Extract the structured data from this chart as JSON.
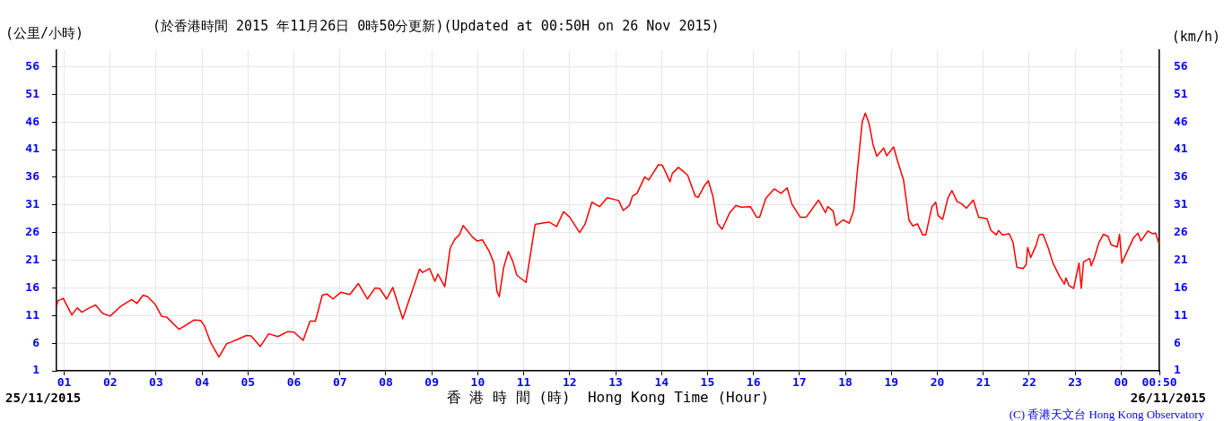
{
  "chart_data": {
    "type": "line",
    "title": "(於香港時間 2015 年11月26日 0時50分更新)(Updated at 00:50H on 26 Nov 2015)",
    "ylabel": "(公里/小時)",
    "y2label": "(km/h)",
    "xlabel": "香 港 時 間 (時)  Hong Kong Time (Hour)",
    "annotations": [
      "25/11/2015",
      "26/11/2015",
      "(C) 香港天文台 Hong Kong Observatory"
    ],
    "x": [
      "2015-11-25T00:50",
      "2015-11-25T00:52",
      "2015-11-25T00:59",
      "2015-11-25T01:01",
      "2015-11-25T01:10",
      "2015-11-25T01:17",
      "2015-11-25T01:23",
      "2015-11-25T01:33",
      "2015-11-25T01:41",
      "2015-11-25T01:50",
      "2015-11-25T02:00",
      "2015-11-25T02:14",
      "2015-11-25T02:28",
      "2015-11-25T02:35",
      "2015-11-25T02:43",
      "2015-11-25T02:49",
      "2015-11-25T02:59",
      "2015-11-25T03:07",
      "2015-11-25T03:14",
      "2015-11-25T03:30",
      "2015-11-25T03:50",
      "2015-11-25T03:58",
      "2015-11-25T04:03",
      "2015-11-25T04:11",
      "2015-11-25T04:22",
      "2015-11-25T04:32",
      "2015-11-25T04:38",
      "2015-11-25T04:48",
      "2015-11-25T04:58",
      "2015-11-25T05:04",
      "2015-11-25T05:16",
      "2015-11-25T05:27",
      "2015-11-25T05:39",
      "2015-11-25T05:52",
      "2015-11-25T06:00",
      "2015-11-25T06:12",
      "2015-11-25T06:21",
      "2015-11-25T06:28",
      "2015-11-25T06:37",
      "2015-11-25T06:43",
      "2015-11-25T06:51",
      "2015-11-25T07:01",
      "2015-11-25T07:13",
      "2015-11-25T07:24",
      "2015-11-25T07:36",
      "2015-11-25T07:46",
      "2015-11-25T07:52",
      "2015-11-25T08:01",
      "2015-11-25T08:09",
      "2015-11-25T08:22",
      "2015-11-25T08:32",
      "2015-11-25T08:44",
      "2015-11-25T08:48",
      "2015-11-25T08:57",
      "2015-11-25T09:04",
      "2015-11-25T09:08",
      "2015-11-25T09:17",
      "2015-11-25T09:24",
      "2015-11-25T09:30",
      "2015-11-25T09:36",
      "2015-11-25T09:41",
      "2015-11-25T09:53",
      "2015-11-25T09:59",
      "2015-11-25T10:06",
      "2015-11-25T10:15",
      "2015-11-25T10:21",
      "2015-11-25T10:25",
      "2015-11-25T10:28",
      "2015-11-25T10:34",
      "2015-11-25T10:40",
      "2015-11-25T10:46",
      "2015-11-25T10:51",
      "2015-11-25T11:03",
      "2015-11-25T11:07",
      "2015-11-25T11:15",
      "2015-11-25T11:23",
      "2015-11-25T11:33",
      "2015-11-25T11:43",
      "2015-11-25T11:52",
      "2015-11-25T12:00",
      "2015-11-25T12:13",
      "2015-11-25T12:20",
      "2015-11-25T12:29",
      "2015-11-25T12:39",
      "2015-11-25T12:49",
      "2015-11-25T13:04",
      "2015-11-25T13:10",
      "2015-11-25T13:18",
      "2015-11-25T13:22",
      "2015-11-25T13:28",
      "2015-11-25T13:38",
      "2015-11-25T13:43",
      "2015-11-25T13:56",
      "2015-11-25T14:01",
      "2015-11-25T14:11",
      "2015-11-25T14:14",
      "2015-11-25T14:22",
      "2015-11-25T14:34",
      "2015-11-25T14:44",
      "2015-11-25T14:48",
      "2015-11-25T14:56",
      "2015-11-25T15:01",
      "2015-11-25T15:07",
      "2015-11-25T15:13",
      "2015-11-25T15:19",
      "2015-11-25T15:29",
      "2015-11-25T15:37",
      "2015-11-25T15:44",
      "2015-11-25T15:56",
      "2015-11-25T16:04",
      "2015-11-25T16:08",
      "2015-11-25T16:16",
      "2015-11-25T16:27",
      "2015-11-25T16:36",
      "2015-11-25T16:44",
      "2015-11-25T16:50",
      "2015-11-25T17:01",
      "2015-11-25T17:09",
      "2015-11-25T17:25",
      "2015-11-25T17:34",
      "2015-11-25T17:37",
      "2015-11-25T17:44",
      "2015-11-25T17:48",
      "2015-11-25T17:57",
      "2015-11-25T18:05",
      "2015-11-25T18:11",
      "2015-11-25T18:16",
      "2015-11-25T18:22",
      "2015-11-25T18:26",
      "2015-11-25T18:31",
      "2015-11-25T18:36",
      "2015-11-25T18:41",
      "2015-11-25T18:50",
      "2015-11-25T18:54",
      "2015-11-25T19:03",
      "2015-11-25T19:08",
      "2015-11-25T19:16",
      "2015-11-25T19:23",
      "2015-11-25T19:28",
      "2015-11-25T19:34",
      "2015-11-25T19:41",
      "2015-11-25T19:45",
      "2015-11-25T19:53",
      "2015-11-25T19:58",
      "2015-11-25T20:01",
      "2015-11-25T20:07",
      "2015-11-25T20:14",
      "2015-11-25T20:19",
      "2015-11-25T20:26",
      "2015-11-25T20:32",
      "2015-11-25T20:38",
      "2015-11-25T20:47",
      "2015-11-25T20:54",
      "2015-11-25T21:05",
      "2015-11-25T21:10",
      "2015-11-25T21:17",
      "2015-11-25T21:20",
      "2015-11-25T21:25",
      "2015-11-25T21:34",
      "2015-11-25T21:39",
      "2015-11-25T21:44",
      "2015-11-25T21:52",
      "2015-11-25T21:56",
      "2015-11-25T21:58",
      "2015-11-25T22:02",
      "2015-11-25T22:09",
      "2015-11-25T22:13",
      "2015-11-25T22:18",
      "2015-11-25T22:25",
      "2015-11-25T22:31",
      "2015-11-25T22:40",
      "2015-11-25T22:46",
      "2015-11-25T22:48",
      "2015-11-25T22:52",
      "2015-11-25T22:58",
      "2015-11-25T23:05",
      "2015-11-25T23:08",
      "2015-11-25T23:11",
      "2015-11-25T23:19",
      "2015-11-25T23:21",
      "2015-11-25T23:25",
      "2015-11-25T23:31",
      "2015-11-25T23:37",
      "2015-11-25T23:43",
      "2015-11-25T23:47",
      "2015-11-25T23:55",
      "2015-11-25T23:58",
      "2015-11-26T00:01",
      "2015-11-26T00:08",
      "2015-11-26T00:16",
      "2015-11-26T00:22",
      "2015-11-26T00:26",
      "2015-11-26T00:35",
      "2015-11-26T00:41",
      "2015-11-26T00:45",
      "2015-11-26T00:49"
    ],
    "series": [
      {
        "color": "#ff0000",
        "values": [
          12.7,
          13.7,
          14.1,
          13.5,
          11.1,
          12.4,
          11.6,
          12.4,
          12.9,
          11.4,
          10.9,
          12.7,
          13.9,
          13.2,
          14.7,
          14.4,
          13.0,
          10.9,
          10.7,
          8.5,
          10.2,
          10.1,
          9.2,
          6.2,
          3.5,
          5.9,
          6.2,
          6.8,
          7.4,
          7.3,
          5.4,
          7.7,
          7.2,
          8.1,
          8.0,
          6.5,
          10.0,
          10.0,
          14.7,
          14.9,
          14.0,
          15.2,
          14.8,
          16.8,
          14.0,
          16.0,
          15.9,
          14.0,
          16.1,
          10.4,
          14.5,
          19.4,
          18.8,
          19.5,
          17.2,
          18.5,
          16.2,
          23.2,
          24.8,
          25.6,
          27.3,
          25.2,
          24.5,
          24.7,
          22.6,
          20.5,
          15.4,
          14.4,
          19.8,
          22.6,
          20.7,
          18.3,
          17.0,
          20.5,
          27.5,
          27.7,
          27.9,
          27.1,
          29.8,
          28.8,
          26.0,
          27.5,
          31.5,
          30.7,
          32.3,
          31.8,
          30.0,
          30.9,
          32.6,
          33.1,
          36.1,
          35.5,
          38.3,
          38.2,
          35.2,
          36.7,
          37.8,
          36.4,
          32.6,
          32.4,
          34.5,
          35.4,
          32.6,
          27.7,
          26.6,
          29.6,
          30.9,
          30.6,
          30.7,
          28.8,
          28.8,
          32.2,
          33.9,
          33.1,
          34.1,
          31.2,
          28.8,
          28.8,
          31.9,
          29.6,
          30.7,
          29.9,
          27.3,
          28.3,
          27.7,
          30.1,
          37.7,
          46.0,
          47.6,
          45.7,
          42.0,
          39.8,
          41.3,
          39.9,
          41.5,
          39.0,
          35.5,
          28.3,
          27.2,
          27.6,
          25.6,
          25.6,
          30.7,
          31.5,
          29.1,
          28.4,
          32.3,
          33.6,
          31.6,
          31.2,
          30.4,
          31.9,
          28.8,
          28.5,
          26.4,
          25.6,
          26.4,
          25.6,
          25.8,
          24.2,
          19.7,
          19.5,
          20.2,
          23.3,
          21.5,
          23.7,
          25.6,
          25.7,
          23.2,
          20.5,
          18.0,
          16.7,
          17.8,
          16.4,
          15.9,
          20.5,
          15.9,
          20.7,
          21.3,
          20.0,
          21.4,
          24.2,
          25.7,
          25.3,
          23.8,
          23.4,
          25.7,
          20.5,
          22.6,
          25.0,
          25.9,
          24.5,
          26.3,
          25.8,
          25.9,
          24.2
        ]
      }
    ],
    "xlim": [
      "2015-11-25T00:50",
      "2015-11-26T00:50"
    ],
    "xticks": [
      {
        "value": "2015-11-25T01:00",
        "label": "01"
      },
      {
        "value": "2015-11-25T02:00",
        "label": "02"
      },
      {
        "value": "2015-11-25T03:00",
        "label": "03"
      },
      {
        "value": "2015-11-25T04:00",
        "label": "04"
      },
      {
        "value": "2015-11-25T05:00",
        "label": "05"
      },
      {
        "value": "2015-11-25T06:00",
        "label": "06"
      },
      {
        "value": "2015-11-25T07:00",
        "label": "07"
      },
      {
        "value": "2015-11-25T08:00",
        "label": "08"
      },
      {
        "value": "2015-11-25T09:00",
        "label": "09"
      },
      {
        "value": "2015-11-25T10:00",
        "label": "10"
      },
      {
        "value": "2015-11-25T11:00",
        "label": "11"
      },
      {
        "value": "2015-11-25T12:00",
        "label": "12"
      },
      {
        "value": "2015-11-25T13:00",
        "label": "13"
      },
      {
        "value": "2015-11-25T14:00",
        "label": "14"
      },
      {
        "value": "2015-11-25T15:00",
        "label": "15"
      },
      {
        "value": "2015-11-25T16:00",
        "label": "16"
      },
      {
        "value": "2015-11-25T17:00",
        "label": "17"
      },
      {
        "value": "2015-11-25T18:00",
        "label": "18"
      },
      {
        "value": "2015-11-25T19:00",
        "label": "19"
      },
      {
        "value": "2015-11-25T20:00",
        "label": "20"
      },
      {
        "value": "2015-11-25T21:00",
        "label": "21"
      },
      {
        "value": "2015-11-25T22:00",
        "label": "22"
      },
      {
        "value": "2015-11-25T23:00",
        "label": "23"
      },
      {
        "value": "2015-11-26T00:00",
        "label": "00"
      },
      {
        "value": "2015-11-26T00:50",
        "label": "00:50"
      }
    ],
    "ylim": [
      1,
      59
    ],
    "yticks": [
      1,
      6,
      11,
      16,
      21,
      26,
      31,
      36,
      41,
      46,
      51,
      56
    ],
    "y2lim": [
      1,
      59
    ],
    "y2ticks": [
      1,
      6,
      11,
      16,
      21,
      26,
      31,
      36,
      41,
      46,
      51,
      56
    ],
    "ref_lines": [
      {
        "axis": "x",
        "value": "2015-11-26T00:00",
        "color": "#dddddd",
        "line_style": "dashed"
      }
    ],
    "grid": true,
    "legend": false,
    "marker": "none",
    "line_style": "solid"
  }
}
